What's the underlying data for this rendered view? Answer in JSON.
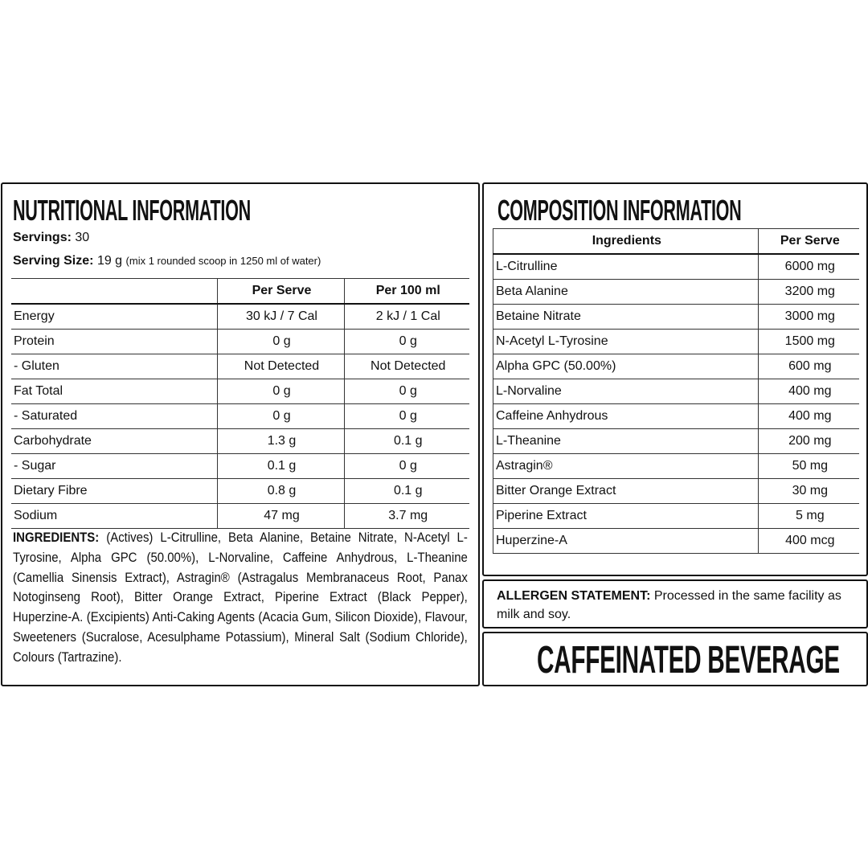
{
  "nutrition": {
    "title": "NUTRITIONAL INFORMATION",
    "servings": {
      "label": "Servings:",
      "value": "30"
    },
    "serving_size": {
      "label": "Serving Size:",
      "value": "19 g",
      "note": "(mix 1 rounded scoop in 1250 ml of water)"
    },
    "table": {
      "header": [
        "Per Serve",
        "Per 100 ml"
      ],
      "rows": [
        [
          "Energy",
          "30 kJ / 7 Cal",
          "2 kJ / 1 Cal"
        ],
        [
          "Protein",
          "0 g",
          "0 g"
        ],
        [
          "- Gluten",
          "Not Detected",
          "Not Detected"
        ],
        [
          "Fat Total",
          "0 g",
          "0 g"
        ],
        [
          "- Saturated",
          "0 g",
          "0 g"
        ],
        [
          "Carbohydrate",
          "1.3 g",
          "0.1 g"
        ],
        [
          "- Sugar",
          "0.1 g",
          "0 g"
        ],
        [
          "Dietary Fibre",
          "0.8 g",
          "0.1 g"
        ],
        [
          "Sodium",
          "47 mg",
          "3.7 mg"
        ]
      ]
    },
    "ingredients": {
      "label": "INGREDIENTS:",
      "text": "(Actives) L-Citrulline, Beta Alanine, Betaine Nitrate, N-Acetyl L-Tyrosine, Alpha GPC (50.00%), L-Norvaline, Caffeine Anhydrous, L-Theanine (Camellia Sinensis Extract), Astragin® (Astragalus Membranaceus Root, Panax Notoginseng Root), Bitter Orange Extract, Piperine Extract (Black Pepper), Huperzine-A. (Excipients) Anti-Caking Agents (Acacia Gum, Silicon Dioxide), Flavour, Sweeteners (Sucralose, Acesulphame Potassium), Mineral Salt (Sodium Chloride), Colours (Tartrazine)."
    }
  },
  "composition": {
    "title": "COMPOSITION INFORMATION",
    "table": {
      "header": [
        "Ingredients",
        "Per Serve"
      ],
      "rows": [
        [
          "L-Citrulline",
          "6000 mg"
        ],
        [
          "Beta Alanine",
          "3200 mg"
        ],
        [
          "Betaine Nitrate",
          "3000 mg"
        ],
        [
          "N-Acetyl L-Tyrosine",
          "1500 mg"
        ],
        [
          "Alpha GPC (50.00%)",
          "600 mg"
        ],
        [
          "L-Norvaline",
          "400 mg"
        ],
        [
          "Caffeine Anhydrous",
          "400 mg"
        ],
        [
          "L-Theanine",
          "200 mg"
        ],
        [
          "Astragin®",
          "50 mg"
        ],
        [
          "Bitter Orange Extract",
          "30 mg"
        ],
        [
          "Piperine Extract",
          "5 mg"
        ],
        [
          "Huperzine-A",
          "400 mcg"
        ]
      ]
    }
  },
  "allergen": {
    "label": "ALLERGEN STATEMENT:",
    "text": "Processed in the same facility as milk and soy."
  },
  "banner": "CAFFEINATED BEVERAGE"
}
